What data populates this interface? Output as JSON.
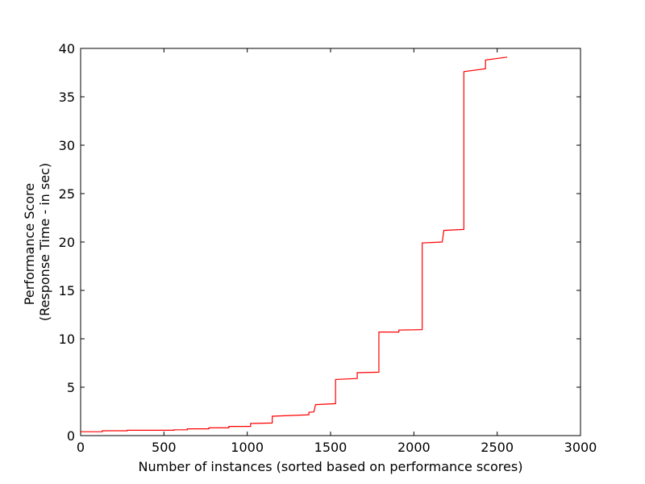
{
  "chart_data": {
    "type": "line",
    "title": "",
    "xlabel": "Number of instances (sorted based on performance scores)",
    "ylabel_lines": [
      "Performance Score",
      "(Response Time - in sec)"
    ],
    "xlim": [
      0,
      3000
    ],
    "ylim": [
      0,
      40
    ],
    "xticks": [
      0,
      500,
      1000,
      1500,
      2000,
      2500,
      3000
    ],
    "yticks": [
      0,
      5,
      10,
      15,
      20,
      25,
      30,
      35,
      40
    ],
    "grid": false,
    "legend": "none",
    "series": [
      {
        "name": "performance",
        "color": "#ff0000",
        "x": [
          0,
          130,
          130,
          280,
          280,
          560,
          560,
          640,
          640,
          770,
          770,
          890,
          890,
          1020,
          1020,
          1150,
          1150,
          1370,
          1370,
          1400,
          1400,
          1410,
          1410,
          1530,
          1530,
          1660,
          1660,
          1790,
          1790,
          1910,
          1910,
          2050,
          2050,
          2170,
          2170,
          2180,
          2180,
          2300,
          2300,
          2430,
          2430,
          2560
        ],
        "y": [
          0.4,
          0.4,
          0.5,
          0.5,
          0.55,
          0.55,
          0.6,
          0.6,
          0.7,
          0.7,
          0.8,
          0.8,
          0.95,
          0.95,
          1.25,
          1.3,
          2.0,
          2.15,
          2.4,
          2.45,
          2.45,
          3.2,
          3.2,
          3.3,
          5.8,
          5.9,
          6.5,
          6.55,
          10.7,
          10.7,
          10.9,
          10.95,
          19.9,
          20.0,
          20.0,
          21.2,
          21.2,
          21.3,
          37.6,
          37.9,
          38.8,
          39.1
        ]
      }
    ]
  }
}
